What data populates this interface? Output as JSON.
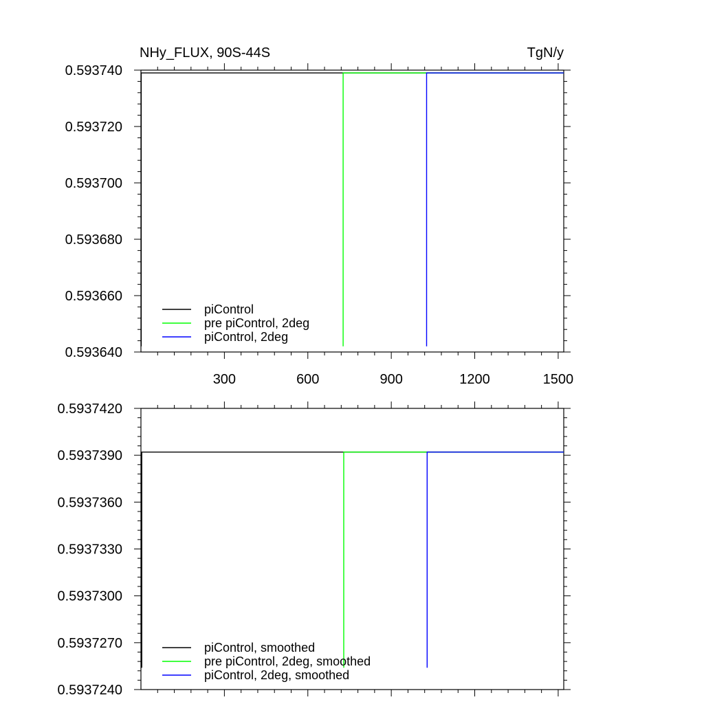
{
  "chart_data": [
    {
      "type": "line",
      "title": "NHy_FLUX, 90S-44S",
      "units": "TgN/y",
      "xlim": [
        0,
        1520
      ],
      "ylim": [
        0.59364,
        0.59374
      ],
      "xticks": [
        300,
        600,
        900,
        1200,
        1500
      ],
      "xtick_labels": [
        "300",
        "600",
        "900",
        "1200",
        "1500"
      ],
      "yticks": [
        0.59364,
        0.59366,
        0.59368,
        0.5937,
        0.59372,
        0.59374
      ],
      "ytick_labels": [
        "0.593640",
        "0.593660",
        "0.593680",
        "0.593700",
        "0.593720",
        "0.593740"
      ],
      "legend_position": "bottom-left",
      "series": [
        {
          "name": "piControl",
          "color": "#000000",
          "x": [
            1,
            1,
            1520
          ],
          "y": [
            0.593642,
            0.593739,
            0.593739
          ]
        },
        {
          "name": "pre piControl, 2deg",
          "color": "#00ff00",
          "x": [
            727,
            727,
            1520
          ],
          "y": [
            0.593642,
            0.593739,
            0.593739
          ]
        },
        {
          "name": "piControl, 2deg",
          "color": "#0000ff",
          "x": [
            1027,
            1027,
            1520
          ],
          "y": [
            0.593642,
            0.593739,
            0.593739
          ]
        }
      ]
    },
    {
      "type": "line",
      "xlim": [
        0,
        1520
      ],
      "ylim": [
        0.593724,
        0.593742
      ],
      "xticks": [
        300,
        600,
        900,
        1200,
        1500
      ],
      "yticks": [
        0.593724,
        0.593727,
        0.59373,
        0.593733,
        0.593736,
        0.593739,
        0.593742
      ],
      "ytick_labels": [
        "0.5937240",
        "0.5937270",
        "0.5937300",
        "0.5937330",
        "0.5937360",
        "0.5937390",
        "0.5937420"
      ],
      "legend_position": "bottom-left",
      "series": [
        {
          "name": "piControl, smoothed",
          "color": "#000000",
          "x": [
            3,
            3,
            1520
          ],
          "y": [
            0.5937254,
            0.5937392,
            0.5937392
          ]
        },
        {
          "name": "pre piControl, 2deg, smoothed",
          "color": "#00ff00",
          "x": [
            729,
            729,
            1520
          ],
          "y": [
            0.5937254,
            0.5937392,
            0.5937392
          ]
        },
        {
          "name": "piControl, 2deg, smoothed",
          "color": "#0000ff",
          "x": [
            1029,
            1029,
            1520
          ],
          "y": [
            0.5937254,
            0.5937392,
            0.5937392
          ]
        }
      ]
    }
  ]
}
